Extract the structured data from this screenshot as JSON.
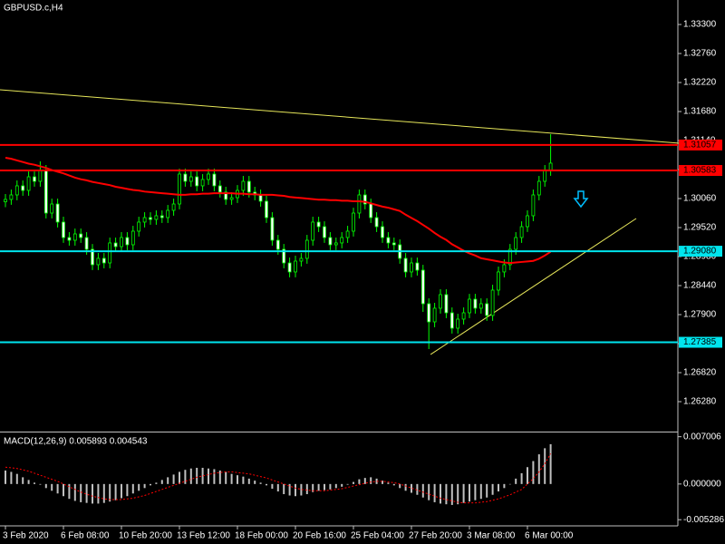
{
  "chart_data": {
    "type": "candlestick",
    "title": "GBPUSD.c,H4",
    "color": "#00ff00",
    "categories": [
      "3 Feb 2020",
      null,
      null,
      null,
      null,
      null,
      null,
      null,
      null,
      null,
      "6 Feb 08:00",
      null,
      null,
      null,
      null,
      null,
      null,
      null,
      null,
      null,
      "10 Feb 20:00",
      null,
      null,
      null,
      null,
      null,
      null,
      null,
      null,
      null,
      "13 Feb 12:00",
      null,
      null,
      null,
      null,
      null,
      null,
      null,
      null,
      null,
      "18 Feb 00:00",
      null,
      null,
      null,
      null,
      null,
      null,
      null,
      null,
      null,
      "20 Feb 16:00",
      null,
      null,
      null,
      null,
      null,
      null,
      null,
      null,
      null,
      "25 Feb 04:00",
      null,
      null,
      null,
      null,
      null,
      null,
      null,
      null,
      null,
      "27 Feb 20:00",
      null,
      null,
      null,
      null,
      null,
      null,
      null,
      null,
      null,
      "3 Mar 08:00",
      null,
      null,
      null,
      null,
      null,
      null,
      null,
      null,
      null,
      "6 Mar 00:00",
      null,
      null,
      null,
      null
    ],
    "open": [
      1.3,
      1.30044,
      1.30128,
      1.30297,
      1.30212,
      1.30465,
      1.30381,
      1.30584,
      1.2979,
      1.29959,
      1.29622,
      1.29335,
      1.29284,
      1.29402,
      1.29335,
      1.29115,
      1.28829,
      1.28947,
      1.28862,
      1.29234,
      1.29166,
      1.29335,
      1.292,
      1.29453,
      1.29622,
      1.29706,
      1.29672,
      1.2974,
      1.29706,
      1.29841,
      1.29959,
      1.30516,
      1.30381,
      1.30465,
      1.30297,
      1.30415,
      1.30516,
      1.30297,
      1.30179,
      1.30044,
      1.30077,
      1.30212,
      1.30381,
      1.30179,
      1.30128,
      1.3001,
      1.29706,
      1.29284,
      1.29115,
      1.28862,
      1.28694,
      1.28896,
      1.28947,
      1.29284,
      1.29622,
      1.29537,
      1.29335,
      1.292,
      1.29234,
      1.29335,
      1.29453,
      1.2979,
      1.30128,
      1.29959,
      1.29706,
      1.29537,
      1.29335,
      1.29234,
      1.292,
      1.28947,
      1.28694,
      1.28862,
      1.28727,
      1.28103,
      1.27765,
      1.28019,
      1.28272,
      1.27934,
      1.27647,
      1.27816,
      1.27934,
      1.28187,
      1.28019,
      1.28103,
      1.27884,
      1.28356,
      1.28694,
      1.28829,
      1.29115,
      1.29335,
      1.29537,
      1.2974,
      1.30128,
      1.30381,
      1.30584
    ],
    "high": [
      1.30144,
      1.30228,
      1.30397,
      1.30397,
      1.30565,
      1.30565,
      1.30753,
      1.30684,
      1.30059,
      1.30059,
      1.29722,
      1.29435,
      1.29502,
      1.29502,
      1.29435,
      1.29215,
      1.29047,
      1.29047,
      1.29334,
      1.29334,
      1.29435,
      1.29435,
      1.29553,
      1.29722,
      1.29806,
      1.29806,
      1.2984,
      1.2984,
      1.29941,
      1.30059,
      1.30616,
      1.30616,
      1.30565,
      1.30565,
      1.30515,
      1.30616,
      1.30616,
      1.30397,
      1.30279,
      1.30177,
      1.30312,
      1.30481,
      1.30481,
      1.30279,
      1.30228,
      1.3011,
      1.29806,
      1.29384,
      1.29215,
      1.28962,
      1.28996,
      1.29047,
      1.29384,
      1.29722,
      1.29722,
      1.29637,
      1.29435,
      1.29334,
      1.29435,
      1.29553,
      1.2989,
      1.30228,
      1.30228,
      1.30059,
      1.29806,
      1.29637,
      1.29435,
      1.29334,
      1.293,
      1.29047,
      1.28962,
      1.28962,
      1.28827,
      1.28203,
      1.28119,
      1.28372,
      1.28372,
      1.28034,
      1.27916,
      1.28034,
      1.28287,
      1.28287,
      1.28203,
      1.28203,
      1.28456,
      1.28794,
      1.28929,
      1.29215,
      1.29435,
      1.29637,
      1.2984,
      1.30228,
      1.30481,
      1.30684,
      1.31259
    ],
    "low": [
      1.299,
      1.29944,
      1.30028,
      1.30112,
      1.30112,
      1.30281,
      1.30281,
      1.2969,
      1.2969,
      1.29522,
      1.29235,
      1.29184,
      1.29184,
      1.29235,
      1.29015,
      1.28729,
      1.28729,
      1.28762,
      1.28762,
      1.29066,
      1.29066,
      1.291,
      1.291,
      1.29353,
      1.29522,
      1.29572,
      1.29572,
      1.29606,
      1.29606,
      1.29741,
      1.29859,
      1.30281,
      1.30281,
      1.30197,
      1.30197,
      1.30315,
      1.30197,
      1.30079,
      1.29944,
      1.29944,
      1.29977,
      1.30112,
      1.30079,
      1.30028,
      1.2991,
      1.29606,
      1.29184,
      1.29015,
      1.28762,
      1.28594,
      1.28594,
      1.28796,
      1.28847,
      1.29184,
      1.29437,
      1.29235,
      1.291,
      1.291,
      1.29134,
      1.29235,
      1.29353,
      1.2969,
      1.29859,
      1.29606,
      1.29437,
      1.29235,
      1.29134,
      1.291,
      1.28847,
      1.28594,
      1.28594,
      1.28627,
      1.2795,
      1.27259,
      1.27665,
      1.27919,
      1.27834,
      1.27547,
      1.27547,
      1.27716,
      1.27834,
      1.27919,
      1.27919,
      1.27784,
      1.27784,
      1.28256,
      1.28594,
      1.28729,
      1.29015,
      1.29235,
      1.29437,
      1.2964,
      1.30028,
      1.30281,
      1.30484
    ],
    "close": [
      1.30044,
      1.30128,
      1.30297,
      1.30212,
      1.30465,
      1.30381,
      1.30584,
      1.2979,
      1.29959,
      1.29622,
      1.29335,
      1.29284,
      1.29402,
      1.29335,
      1.29115,
      1.28829,
      1.28947,
      1.28862,
      1.29234,
      1.29166,
      1.29335,
      1.292,
      1.29453,
      1.29622,
      1.29706,
      1.29672,
      1.2974,
      1.29706,
      1.29841,
      1.29959,
      1.30516,
      1.30381,
      1.30465,
      1.30297,
      1.30415,
      1.30516,
      1.30297,
      1.30179,
      1.30044,
      1.30077,
      1.30212,
      1.30381,
      1.30179,
      1.30128,
      1.3001,
      1.29706,
      1.29284,
      1.29115,
      1.28862,
      1.28694,
      1.28896,
      1.28947,
      1.29284,
      1.29622,
      1.29537,
      1.29335,
      1.292,
      1.29234,
      1.29335,
      1.29453,
      1.2979,
      1.30128,
      1.29959,
      1.29706,
      1.29537,
      1.29335,
      1.29234,
      1.292,
      1.28947,
      1.28694,
      1.28862,
      1.28727,
      1.28103,
      1.27765,
      1.28019,
      1.28272,
      1.27934,
      1.27647,
      1.27816,
      1.27934,
      1.28187,
      1.28019,
      1.28103,
      1.27884,
      1.28356,
      1.28694,
      1.28829,
      1.29115,
      1.29335,
      1.29537,
      1.2974,
      1.30128,
      1.30381,
      1.30584,
      1.30719
    ],
    "ma": {
      "color": "#ff0000",
      "values": [
        1.3082,
        1.308,
        1.3077,
        1.3074,
        1.3071,
        1.3069,
        1.3066,
        1.3063,
        1.3059,
        1.3056,
        1.3053,
        1.3049,
        1.3045,
        1.3042,
        1.304,
        1.3037,
        1.3035,
        1.3033,
        1.3031,
        1.3028,
        1.3026,
        1.3024,
        1.3022,
        1.3021,
        1.3019,
        1.3018,
        1.3017,
        1.3016,
        1.3015,
        1.3014,
        1.3013,
        1.3013,
        1.3014,
        1.3014,
        1.3015,
        1.3015,
        1.3016,
        1.3016,
        1.3016,
        1.3016,
        1.3015,
        1.3015,
        1.3014,
        1.3014,
        1.3013,
        1.3013,
        1.3013,
        1.3012,
        1.3011,
        1.3009,
        1.3008,
        1.3007,
        1.3006,
        1.3005,
        1.3004,
        1.3004,
        1.3003,
        1.3003,
        1.3002,
        1.3002,
        1.3001,
        1.3001,
        1.3,
        1.2997,
        1.2994,
        1.2991,
        1.2989,
        1.2986,
        1.2983,
        1.2976,
        1.297,
        1.2964,
        1.2957,
        1.295,
        1.2942,
        1.2935,
        1.2929,
        1.2921,
        1.2915,
        1.2909,
        1.2904,
        1.29,
        1.2895,
        1.2893,
        1.2891,
        1.2889,
        1.2887,
        1.2886,
        1.2887,
        1.2888,
        1.2889,
        1.289,
        1.2894,
        1.29,
        1.2907
      ]
    },
    "levels": [
      {
        "value": 1.31057,
        "label": "1.31057",
        "color": "#ff0000"
      },
      {
        "value": 1.30583,
        "label": "1.30583",
        "color": "#ff0000"
      },
      {
        "value": 1.2908,
        "label": "1.29080",
        "color": "#00e5ee"
      },
      {
        "value": 1.27385,
        "label": "1.27385",
        "color": "#00e5ee"
      }
    ],
    "trendlines": [
      {
        "color": "#e6e65a",
        "x": [
          -0.94,
          116.25
        ],
        "y": [
          1.32085,
          1.3109
        ]
      },
      {
        "color": "#e6e65a",
        "x": [
          73.3,
          108.75
        ],
        "y": [
          1.27158,
          1.29689
        ]
      }
    ],
    "ylim": [
      1.2574,
      1.33756
    ],
    "yticks": [
      {
        "value": 1.333,
        "label": "1.33300"
      },
      {
        "value": 1.3276,
        "label": "1.32760"
      },
      {
        "value": 1.3222,
        "label": "1.32220"
      },
      {
        "value": 1.3168,
        "label": "1.31680"
      },
      {
        "value": 1.3114,
        "label": "1.31140"
      },
      {
        "value": 1.306,
        "label": "1.30600"
      },
      {
        "value": 1.3006,
        "label": "1.30060"
      },
      {
        "value": 1.2952,
        "label": "1.29520"
      },
      {
        "value": 1.2898,
        "label": "1.28980"
      },
      {
        "value": 1.2844,
        "label": "1.28440"
      },
      {
        "value": 1.279,
        "label": "1.27900"
      },
      {
        "value": 1.2736,
        "label": "1.27360"
      },
      {
        "value": 1.2682,
        "label": "1.26820"
      },
      {
        "value": 1.2628,
        "label": "1.26280"
      }
    ],
    "grid": false,
    "macd": {
      "title": "MACD(12,26,9) 0.005893 0.004543",
      "histogram": {
        "color": "#c0c0c0",
        "values": [
          0.002,
          0.0018,
          0.0015,
          0.001,
          0.0006,
          0.0002,
          -0.0001,
          -0.0006,
          -0.001,
          -0.0014,
          -0.0018,
          -0.0022,
          -0.0025,
          -0.0027,
          -0.0028,
          -0.0029,
          -0.0029,
          -0.0028,
          -0.0026,
          -0.0024,
          -0.0021,
          -0.0018,
          -0.0014,
          -0.001,
          -0.0006,
          -0.0002,
          0.0002,
          0.0006,
          0.001,
          0.0014,
          0.0018,
          0.0021,
          0.0023,
          0.0024,
          0.0024,
          0.0023,
          0.0022,
          0.002,
          0.0018,
          0.0015,
          0.0013,
          0.0011,
          0.0008,
          0.0005,
          0.0002,
          -0.0002,
          -0.0007,
          -0.0011,
          -0.0015,
          -0.0017,
          -0.0018,
          -0.0017,
          -0.0015,
          -0.0012,
          -0.001,
          -0.0009,
          -0.0008,
          -0.0006,
          -0.0004,
          -0.0001,
          0.0003,
          0.0007,
          0.0009,
          0.001,
          0.0008,
          0.0005,
          0.0002,
          -0.0002,
          -0.0006,
          -0.001,
          -0.0013,
          -0.0016,
          -0.002,
          -0.0024,
          -0.0027,
          -0.0029,
          -0.003,
          -0.0031,
          -0.003,
          -0.0028,
          -0.0026,
          -0.0024,
          -0.0022,
          -0.002,
          -0.0016,
          -0.0011,
          -0.0006,
          0.0,
          0.0008,
          0.0016,
          0.0025,
          0.0034,
          0.0044,
          0.0053,
          0.0059
        ]
      },
      "signal": {
        "color": "#ff0000",
        "values": [
          0.0025,
          0.0024,
          0.0023,
          0.0021,
          0.0019,
          0.0016,
          0.0013,
          0.001,
          0.0007,
          0.0004,
          0.0,
          -0.0004,
          -0.0008,
          -0.0012,
          -0.0015,
          -0.0018,
          -0.002,
          -0.0022,
          -0.0023,
          -0.0023,
          -0.0023,
          -0.0022,
          -0.0021,
          -0.0019,
          -0.0017,
          -0.0014,
          -0.0011,
          -0.0008,
          -0.0005,
          -0.0002,
          0.0001,
          0.0004,
          0.0007,
          0.001,
          0.0012,
          0.0014,
          0.0016,
          0.0017,
          0.0018,
          0.0018,
          0.0017,
          0.0016,
          0.0015,
          0.0013,
          0.0011,
          0.0009,
          0.0006,
          0.0003,
          0.0,
          -0.0003,
          -0.0006,
          -0.0008,
          -0.0009,
          -0.001,
          -0.001,
          -0.001,
          -0.0009,
          -0.0008,
          -0.0007,
          -0.0005,
          -0.0003,
          -0.0001,
          0.0001,
          0.0003,
          0.0004,
          0.0004,
          0.0003,
          0.0002,
          0.0,
          -0.0003,
          -0.0006,
          -0.0009,
          -0.0012,
          -0.0015,
          -0.0018,
          -0.0021,
          -0.0023,
          -0.0025,
          -0.0027,
          -0.0028,
          -0.0028,
          -0.0028,
          -0.0027,
          -0.0026,
          -0.0024,
          -0.0022,
          -0.0019,
          -0.0016,
          -0.0012,
          -0.0008,
          0.0,
          0.0008,
          0.0018,
          0.003,
          0.0045
        ]
      },
      "ylim": [
        -0.0062,
        0.0075
      ],
      "yticks": [
        0.007006,
        {
          "value": 0,
          "label": "0.000000"
        },
        -0.005286
      ]
    }
  }
}
